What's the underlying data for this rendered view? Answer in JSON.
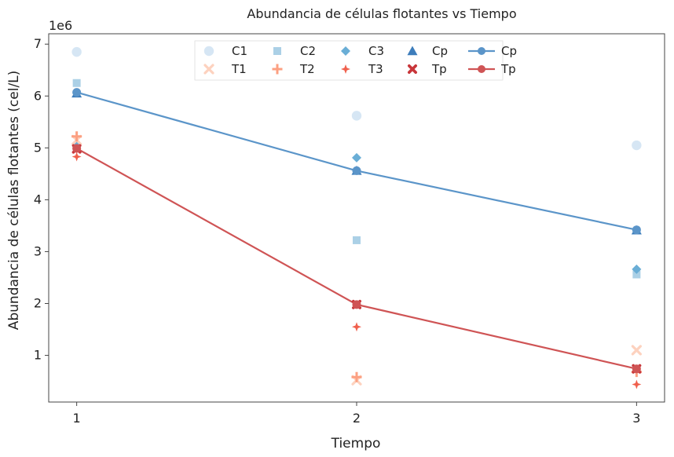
{
  "chart_data": {
    "type": "line",
    "title": "Abundancia de células flotantes vs Tiempo",
    "xlabel": "Tiempo",
    "ylabel": "Abundancia de células flotantes (cel/L)",
    "y_offset_label": "1e6",
    "x": [
      1,
      2,
      3
    ],
    "x_ticks": [
      "1",
      "2",
      "3"
    ],
    "y_ticks": [
      "1",
      "2",
      "3",
      "4",
      "5",
      "6",
      "7"
    ],
    "xlim": [
      0.9,
      3.1
    ],
    "ylim": [
      0.1,
      7.2
    ],
    "y_scale": 1000000,
    "grid": false,
    "legend_position": "top-center",
    "points": [
      {
        "name": "C1",
        "marker": "circle",
        "color": "#d6e6f4",
        "values": [
          6850000,
          5620000,
          5050000
        ]
      },
      {
        "name": "C2",
        "marker": "square",
        "color": "#abd0e6",
        "values": [
          6250000,
          3220000,
          2560000
        ]
      },
      {
        "name": "C3",
        "marker": "diamond",
        "color": "#6aaed6",
        "values": [
          5080000,
          4810000,
          2660000
        ]
      },
      {
        "name": "Cp",
        "marker": "triangle",
        "color": "#3d7dbb",
        "values": [
          6050000,
          4560000,
          3410000
        ]
      },
      {
        "name": "T1",
        "marker": "x",
        "color": "#fdd2bf",
        "values": [
          5150000,
          520000,
          1100000
        ]
      },
      {
        "name": "T2",
        "marker": "plus",
        "color": "#fca082",
        "values": [
          5220000,
          580000,
          680000
        ]
      },
      {
        "name": "T3",
        "marker": "star",
        "color": "#f0604d",
        "values": [
          4830000,
          1550000,
          440000
        ]
      },
      {
        "name": "Tp",
        "marker": "xbold",
        "color": "#c8363a",
        "values": [
          4980000,
          1980000,
          740000
        ]
      }
    ],
    "series": [
      {
        "name": "Cp",
        "color": "#5b95c9",
        "values": [
          6070000,
          4560000,
          3420000
        ]
      },
      {
        "name": "Tp",
        "color": "#cf5455",
        "values": [
          4990000,
          1980000,
          740000
        ]
      }
    ]
  }
}
